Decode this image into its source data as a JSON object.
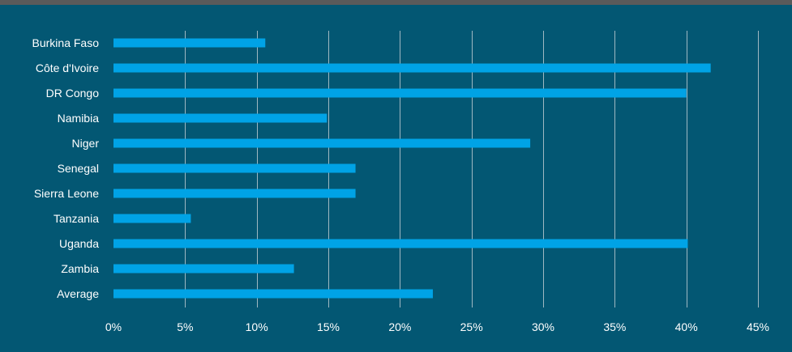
{
  "chart_data": {
    "type": "bar",
    "orientation": "horizontal",
    "categories": [
      "Burkina Faso",
      "Côte d'Ivoire",
      "DR Congo",
      "Namibia",
      "Niger",
      "Senegal",
      "Sierra Leone",
      "Tanzania",
      "Uganda",
      "Zambia",
      "Average"
    ],
    "values": [
      10.6,
      41.7,
      40.0,
      14.9,
      29.1,
      16.9,
      16.9,
      5.4,
      40.1,
      12.6,
      22.3
    ],
    "xlim": [
      0,
      45
    ],
    "xticks": [
      0,
      5,
      10,
      15,
      20,
      25,
      30,
      35,
      40,
      45
    ],
    "tick_labels": [
      "0%",
      "5%",
      "10%",
      "15%",
      "20%",
      "25%",
      "30%",
      "35%",
      "40%",
      "45%"
    ],
    "grid": "vertical",
    "legend": "none",
    "colors": {
      "background": "#035773",
      "bar": "#00a3e6",
      "gridline": "#9fb8c2",
      "text": "#ffffff"
    }
  }
}
